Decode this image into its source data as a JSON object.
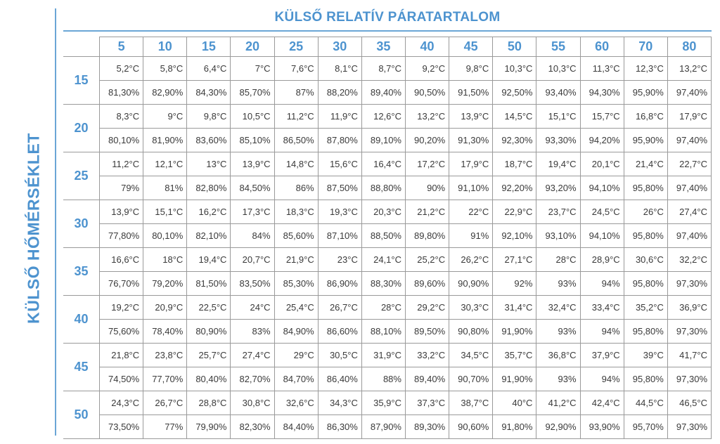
{
  "title_x": "KÜLSŐ RELATÍV PÁRATARTALOM",
  "title_y": "KÜLSŐ HŐMÉRSÉKLET",
  "colors": {
    "accent": "#4d93cf",
    "grid": "#9a9a9a",
    "text": "#3a3a3a"
  },
  "chart_data": {
    "type": "table",
    "xlabel": "KÜLSŐ RELATÍV PÁRATARTALOM",
    "ylabel": "KÜLSŐ HŐMÉRSÉKLET",
    "columns": [
      "5",
      "10",
      "15",
      "20",
      "25",
      "30",
      "35",
      "40",
      "45",
      "50",
      "55",
      "60",
      "70",
      "80"
    ],
    "rows": [
      {
        "label": "15",
        "temps": [
          "5,2°C",
          "5,8°C",
          "6,4°C",
          "7°C",
          "7,6°C",
          "8,1°C",
          "8,7°C",
          "9,2°C",
          "9,8°C",
          "10,3°C",
          "10,3°C",
          "11,3°C",
          "12,3°C",
          "13,2°C"
        ],
        "hums": [
          "81,30%",
          "82,90%",
          "84,30%",
          "85,70%",
          "87%",
          "88,20%",
          "89,40%",
          "90,50%",
          "91,50%",
          "92,50%",
          "93,40%",
          "94,30%",
          "95,90%",
          "97,40%"
        ]
      },
      {
        "label": "20",
        "temps": [
          "8,3°C",
          "9°C",
          "9,8°C",
          "10,5°C",
          "11,2°C",
          "11,9°C",
          "12,6°C",
          "13,2°C",
          "13,9°C",
          "14,5°C",
          "15,1°C",
          "15,7°C",
          "16,8°C",
          "17,9°C"
        ],
        "hums": [
          "80,10%",
          "81,90%",
          "83,60%",
          "85,10%",
          "86,50%",
          "87,80%",
          "89,10%",
          "90,20%",
          "91,30%",
          "92,30%",
          "93,30%",
          "94,20%",
          "95,90%",
          "97,40%"
        ]
      },
      {
        "label": "25",
        "temps": [
          "11,2°C",
          "12,1°C",
          "13°C",
          "13,9°C",
          "14,8°C",
          "15,6°C",
          "16,4°C",
          "17,2°C",
          "17,9°C",
          "18,7°C",
          "19,4°C",
          "20,1°C",
          "21,4°C",
          "22,7°C"
        ],
        "hums": [
          "79%",
          "81%",
          "82,80%",
          "84,50%",
          "86%",
          "87,50%",
          "88,80%",
          "90%",
          "91,10%",
          "92,20%",
          "93,20%",
          "94,10%",
          "95,80%",
          "97,40%"
        ]
      },
      {
        "label": "30",
        "temps": [
          "13,9°C",
          "15,1°C",
          "16,2°C",
          "17,3°C",
          "18,3°C",
          "19,3°C",
          "20,3°C",
          "21,2°C",
          "22°C",
          "22,9°C",
          "23,7°C",
          "24,5°C",
          "26°C",
          "27,4°C"
        ],
        "hums": [
          "77,80%",
          "80,10%",
          "82,10%",
          "84%",
          "85,60%",
          "87,10%",
          "88,50%",
          "89,80%",
          "91%",
          "92,10%",
          "93,10%",
          "94,10%",
          "95,80%",
          "97,40%"
        ]
      },
      {
        "label": "35",
        "temps": [
          "16,6°C",
          "18°C",
          "19,4°C",
          "20,7°C",
          "21,9°C",
          "23°C",
          "24,1°C",
          "25,2°C",
          "26,2°C",
          "27,1°C",
          "28°C",
          "28,9°C",
          "30,6°C",
          "32,2°C"
        ],
        "hums": [
          "76,70%",
          "79,20%",
          "81,50%",
          "83,50%",
          "85,30%",
          "86,90%",
          "88,30%",
          "89,60%",
          "90,90%",
          "92%",
          "93%",
          "94%",
          "95,80%",
          "97,30%"
        ]
      },
      {
        "label": "40",
        "temps": [
          "19,2°C",
          "20,9°C",
          "22,5°C",
          "24°C",
          "25,4°C",
          "26,7°C",
          "28°C",
          "29,2°C",
          "30,3°C",
          "31,4°C",
          "32,4°C",
          "33,4°C",
          "35,2°C",
          "36,9°C"
        ],
        "hums": [
          "75,60%",
          "78,40%",
          "80,90%",
          "83%",
          "84,90%",
          "86,60%",
          "88,10%",
          "89,50%",
          "90,80%",
          "91,90%",
          "93%",
          "94%",
          "95,80%",
          "97,30%"
        ]
      },
      {
        "label": "45",
        "temps": [
          "21,8°C",
          "23,8°C",
          "25,7°C",
          "27,4°C",
          "29°C",
          "30,5°C",
          "31,9°C",
          "33,2°C",
          "34,5°C",
          "35,7°C",
          "36,8°C",
          "37,9°C",
          "39°C",
          "41,7°C"
        ],
        "hums": [
          "74,50%",
          "77,70%",
          "80,40%",
          "82,70%",
          "84,70%",
          "86,40%",
          "88%",
          "89,40%",
          "90,70%",
          "91,90%",
          "93%",
          "94%",
          "95,80%",
          "97,30%"
        ]
      },
      {
        "label": "50",
        "temps": [
          "24,3°C",
          "26,7°C",
          "28,8°C",
          "30,8°C",
          "32,6°C",
          "34,3°C",
          "35,9°C",
          "37,3°C",
          "38,7°C",
          "40°C",
          "41,2°C",
          "42,4°C",
          "44,5°C",
          "46,5°C"
        ],
        "hums": [
          "73,50%",
          "77%",
          "79,90%",
          "82,30%",
          "84,40%",
          "86,30%",
          "87,90%",
          "89,30%",
          "90,60%",
          "91,80%",
          "92,90%",
          "93,90%",
          "95,70%",
          "97,30%"
        ]
      }
    ]
  }
}
